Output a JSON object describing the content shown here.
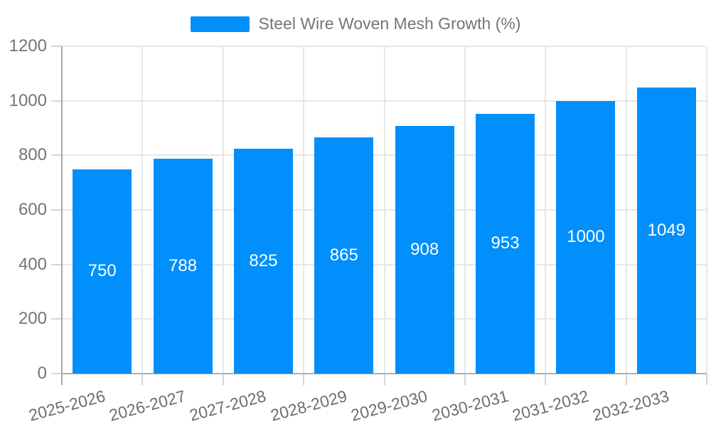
{
  "chart_data": {
    "type": "bar",
    "title": "",
    "xlabel": "",
    "ylabel": "",
    "categories": [
      "2025-2026",
      "2026-2027",
      "2027-2028",
      "2028-2029",
      "2029-2030",
      "2030-2031",
      "2031-2032",
      "2032-2033"
    ],
    "series": [
      {
        "name": "Steel Wire Woven Mesh Growth (%)",
        "values": [
          750,
          788,
          825,
          865,
          908,
          953,
          1000,
          1049
        ]
      }
    ],
    "ylim": [
      0,
      1200
    ],
    "ytick_step": 200,
    "ytick_labels": [
      "0",
      "200",
      "400",
      "600",
      "800",
      "1000",
      "1200"
    ],
    "grid": true,
    "legend_position": "top",
    "value_labels_shown": true,
    "colors": {
      "bar": "#008FFB",
      "grid": "#e7e7e7",
      "axis": "#b0b0b0",
      "tick_text": "#757575",
      "value_label_text": "#ffffff"
    }
  }
}
